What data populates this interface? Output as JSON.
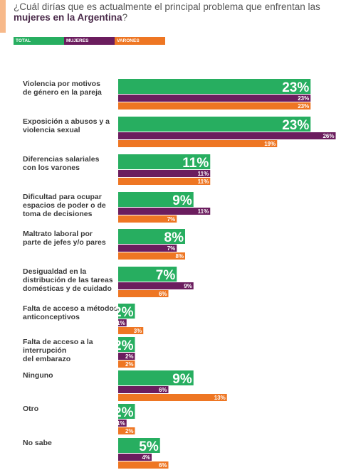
{
  "header": {
    "title_part1": "¿Cuál dirías que es actualmente el principal problema que enfrentan las ",
    "title_bold": "mujeres en la Argentina",
    "title_part2": "?"
  },
  "colors": {
    "total": "#27ae60",
    "mujeres": "#6b1d5e",
    "varones": "#ee7623",
    "label": "#3a3a3a"
  },
  "chart_data": {
    "type": "bar",
    "orientation": "horizontal",
    "value_suffix": "%",
    "categories": [
      [
        "Violencia por motivos",
        "de género en la pareja"
      ],
      [
        "Exposición a abusos y a",
        "violencia sexual"
      ],
      [
        "Diferencias salariales",
        "con los varones"
      ],
      [
        "Dificultad para ocupar",
        "espacios de poder o de",
        "toma de decisiones"
      ],
      [
        "Maltrato laboral por",
        "parte de jefes y/o pares"
      ],
      [
        "Desigualdad en la",
        "distribución de las tareas",
        "domésticas y de cuidado"
      ],
      [
        "Falta de acceso a métodos",
        "anticonceptivos"
      ],
      [
        "Falta de acceso a la",
        "interrupción",
        "del embarazo"
      ],
      [
        "Ninguno"
      ],
      [
        "Otro"
      ],
      [
        "No sabe"
      ]
    ],
    "series": [
      {
        "name": "TOTAL",
        "values": [
          23,
          23,
          11,
          9,
          8,
          7,
          2,
          2,
          9,
          2,
          5
        ]
      },
      {
        "name": "MUJERES",
        "values": [
          23,
          26,
          11,
          11,
          7,
          9,
          1,
          2,
          6,
          1,
          4
        ]
      },
      {
        "name": "VARONES",
        "values": [
          23,
          19,
          11,
          7,
          8,
          6,
          3,
          2,
          13,
          2,
          6
        ]
      }
    ]
  }
}
